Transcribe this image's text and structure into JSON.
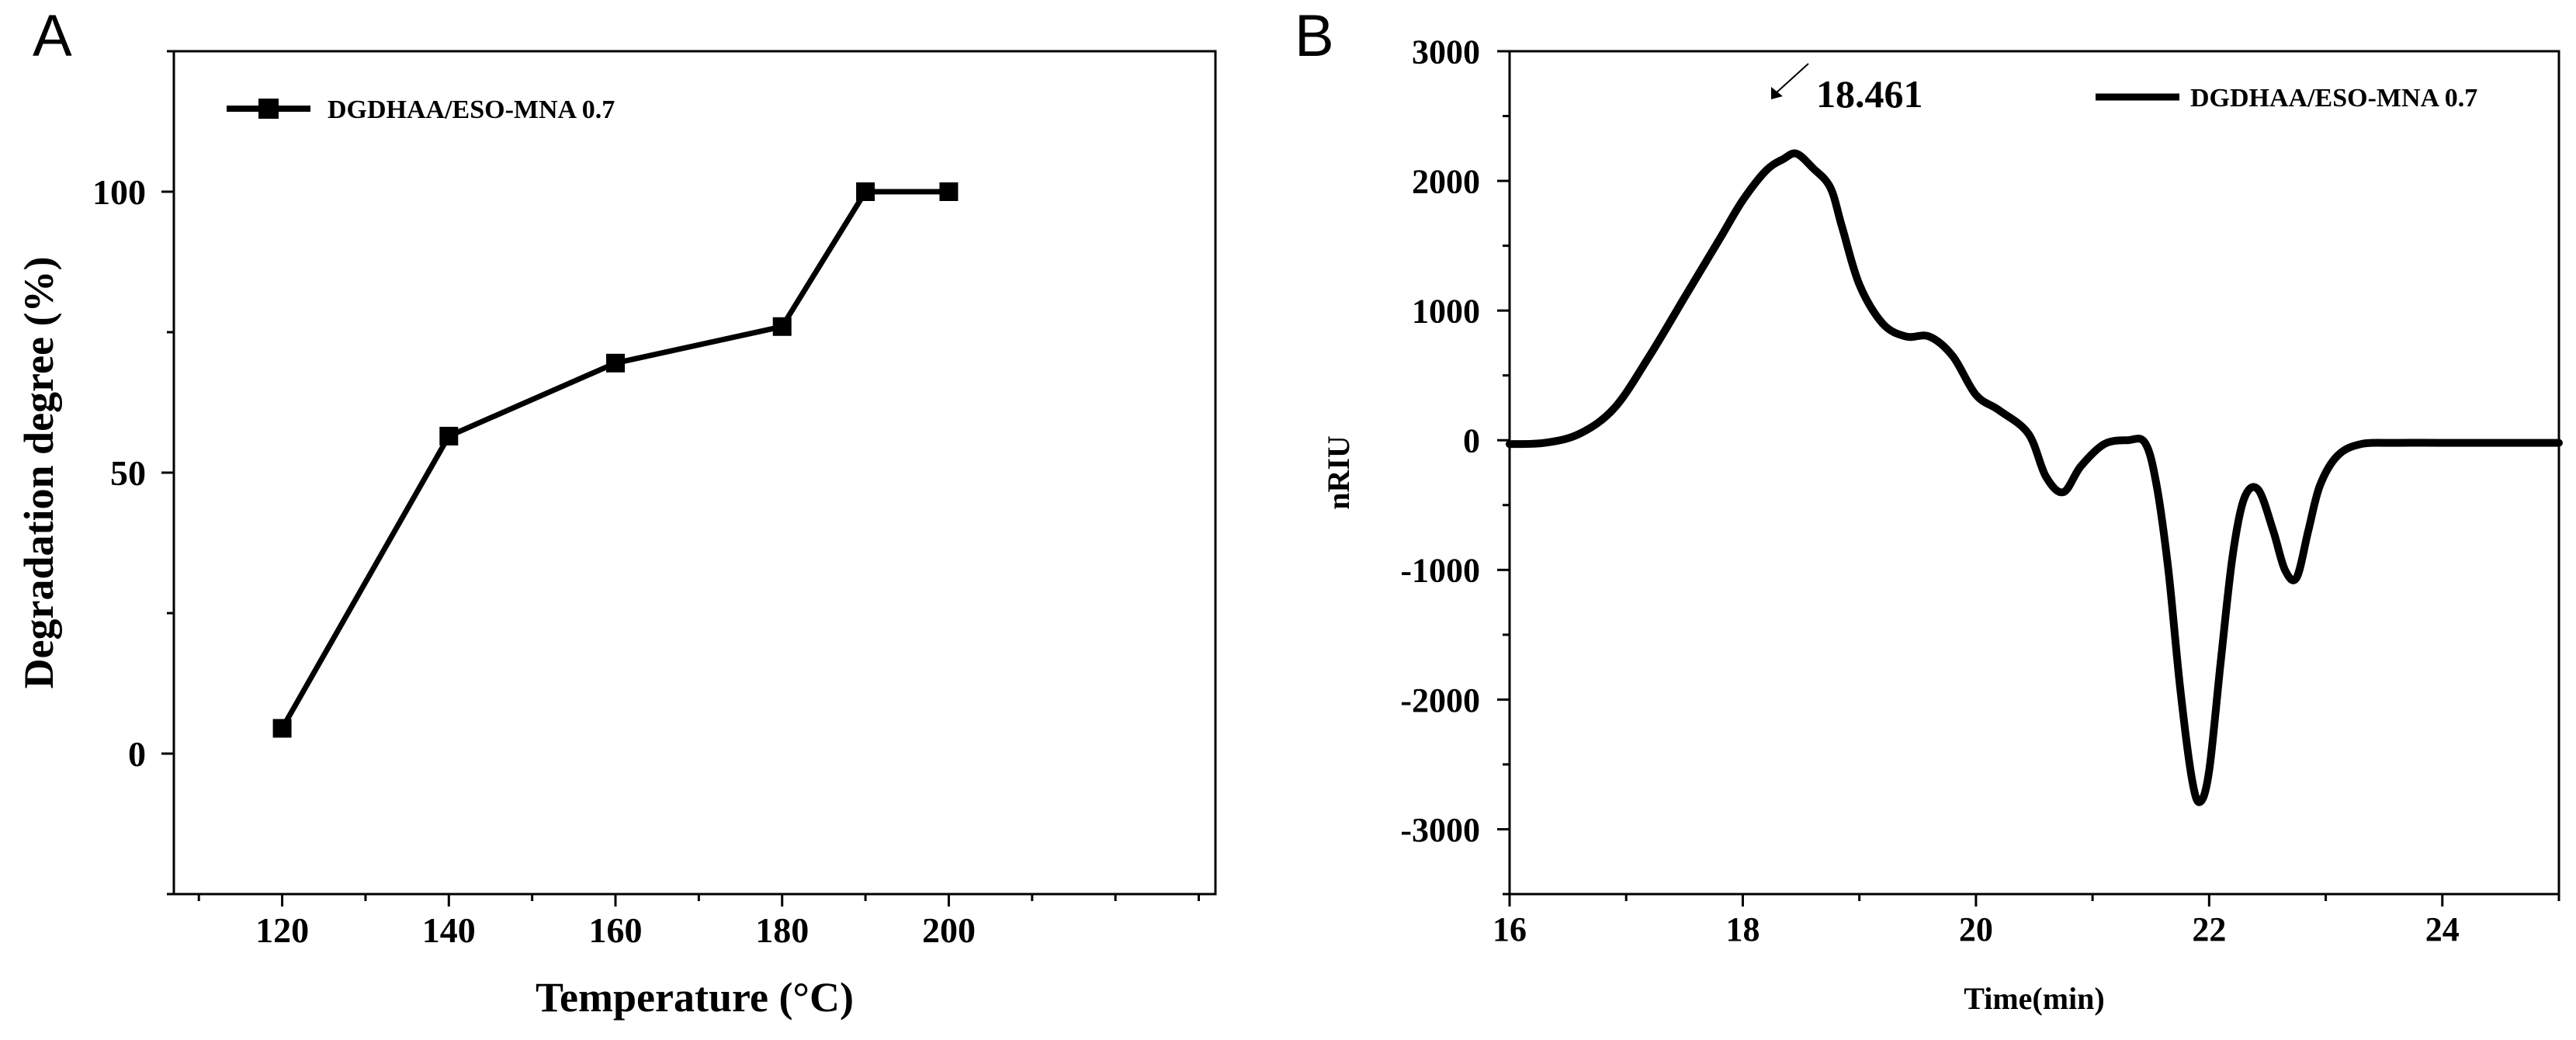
{
  "chart_data": [
    {
      "panel_label": "A",
      "type": "line",
      "xlabel": "Temperature (°C)",
      "ylabel": "Degradation degree (%)",
      "xlim": [
        107,
        232
      ],
      "ylim": [
        -25,
        125
      ],
      "xticks": [
        "120",
        "140",
        "160",
        "180",
        "200"
      ],
      "yticks": [
        "0",
        "50",
        "100"
      ],
      "xtick_values": [
        120,
        140,
        160,
        180,
        200
      ],
      "ytick_values": [
        0,
        50,
        100
      ],
      "minor_x_step": 10,
      "minor_y_step": 25,
      "grid": false,
      "legend_position": "top-left",
      "marker": "square",
      "series": [
        {
          "name": "DGDHAA/ESO-MNA 0.7",
          "color": "#000000",
          "x": [
            120,
            140,
            160,
            180,
            190,
            200
          ],
          "y": [
            4.5,
            56.5,
            69.5,
            76,
            100,
            100
          ]
        }
      ]
    },
    {
      "panel_label": "B",
      "type": "line",
      "xlabel": "Time(min)",
      "ylabel": "nRIU",
      "xlim": [
        16,
        25
      ],
      "ylim": [
        -3500,
        3000
      ],
      "xticks": [
        "16",
        "18",
        "20",
        "22",
        "24"
      ],
      "yticks": [
        "3000",
        "2000",
        "1000",
        "0",
        "-1000",
        "-2000",
        "-3000"
      ],
      "xtick_values": [
        16,
        18,
        20,
        22,
        24
      ],
      "ytick_values": [
        3000,
        2000,
        1000,
        0,
        -1000,
        -2000,
        -3000
      ],
      "minor_x_step": 1,
      "minor_y_step": 500,
      "grid": false,
      "legend_position": "top-right",
      "annotation": {
        "text": "18.461",
        "x": 18.461,
        "y": 2210
      },
      "series": [
        {
          "name": "DGDHAA/ESO-MNA 0.7",
          "color": "#000000",
          "x": [
            16.0,
            16.3,
            16.6,
            16.9,
            17.2,
            17.5,
            17.8,
            18.0,
            18.2,
            18.35,
            18.461,
            18.6,
            18.75,
            18.85,
            19.0,
            19.2,
            19.4,
            19.6,
            19.8,
            20.0,
            20.2,
            20.45,
            20.6,
            20.75,
            20.9,
            21.1,
            21.3,
            21.45,
            21.55,
            21.65,
            21.75,
            21.85,
            21.92,
            22.0,
            22.1,
            22.2,
            22.3,
            22.42,
            22.55,
            22.65,
            22.75,
            22.85,
            22.95,
            23.1,
            23.3,
            23.6,
            24.0,
            24.5,
            25.0
          ],
          "y": [
            -30,
            -20,
            50,
            250,
            650,
            1100,
            1550,
            1850,
            2080,
            2170,
            2210,
            2100,
            1950,
            1650,
            1200,
            900,
            800,
            800,
            650,
            350,
            230,
            50,
            -280,
            -400,
            -200,
            -30,
            0,
            -20,
            -350,
            -1000,
            -1900,
            -2600,
            -2790,
            -2550,
            -1700,
            -900,
            -450,
            -380,
            -700,
            -1000,
            -1060,
            -700,
            -350,
            -120,
            -30,
            -20,
            -20,
            -20,
            -20
          ]
        }
      ]
    }
  ]
}
